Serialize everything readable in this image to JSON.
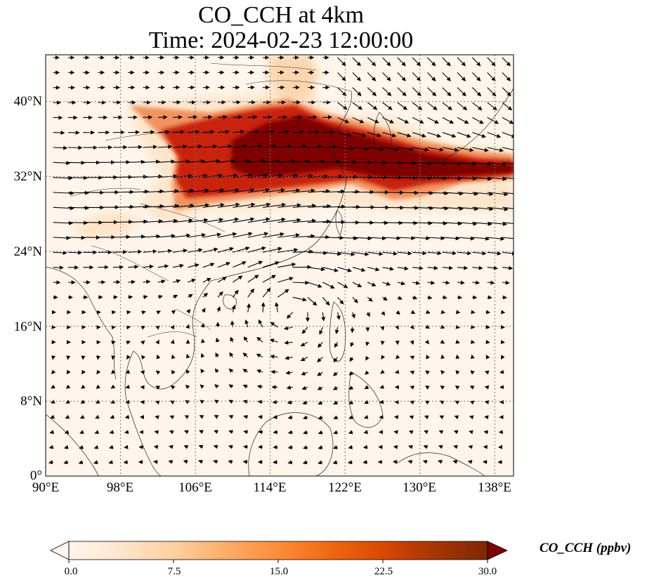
{
  "title_line1": "CO_CCH at 4km",
  "title_line2": "Time: 2024-02-23 12:00:00",
  "map": {
    "lon_range": [
      90,
      140
    ],
    "lat_range": [
      0,
      45
    ],
    "lat_ticks": [
      "40°N",
      "32°N",
      "24°N",
      "16°N",
      "8°N",
      "0°"
    ],
    "lon_ticks": [
      "90°E",
      "98°E",
      "106°E",
      "114°E",
      "122°E",
      "130°E",
      "138°E"
    ],
    "gridlines": true,
    "background_color": "#fff5eb"
  },
  "colorbar": {
    "label": "CO_CCH (ppbv)",
    "min": 0.0,
    "max": 30.0,
    "ticks": [
      "0.0",
      "7.5",
      "15.0",
      "22.5",
      "30.0"
    ],
    "colormap": [
      "#fff5eb",
      "#fee6ce",
      "#fdd0a2",
      "#fdae6b",
      "#fd8d3c",
      "#f16913",
      "#d94801",
      "#a63603",
      "#7f2704"
    ],
    "extend": "both"
  }
}
